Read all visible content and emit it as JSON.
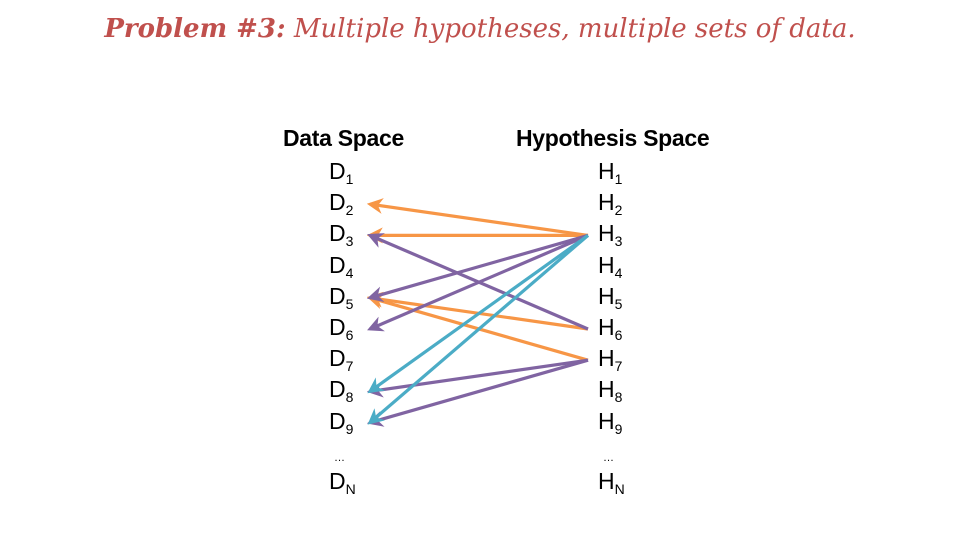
{
  "title": {
    "prefix": "Problem #3:",
    "text": " Multiple hypotheses, multiple sets of data."
  },
  "data_space": {
    "heading": "Data Space",
    "items": [
      {
        "base": "D",
        "sub": "1"
      },
      {
        "base": "D",
        "sub": "2"
      },
      {
        "base": "D",
        "sub": "3"
      },
      {
        "base": "D",
        "sub": "4"
      },
      {
        "base": "D",
        "sub": "5"
      },
      {
        "base": "D",
        "sub": "6"
      },
      {
        "base": "D",
        "sub": "7"
      },
      {
        "base": "D",
        "sub": "8"
      },
      {
        "base": "D",
        "sub": "9"
      }
    ],
    "ellipsis": "…",
    "last": {
      "base": "D",
      "sub": "N"
    }
  },
  "hypothesis_space": {
    "heading": "Hypothesis Space",
    "items": [
      {
        "base": "H",
        "sub": "1"
      },
      {
        "base": "H",
        "sub": "2"
      },
      {
        "base": "H",
        "sub": "3"
      },
      {
        "base": "H",
        "sub": "4"
      },
      {
        "base": "H",
        "sub": "5"
      },
      {
        "base": "H",
        "sub": "6"
      },
      {
        "base": "H",
        "sub": "7"
      },
      {
        "base": "H",
        "sub": "8"
      },
      {
        "base": "H",
        "sub": "9"
      }
    ],
    "ellipsis": "…",
    "last": {
      "base": "H",
      "sub": "N"
    }
  },
  "colors": {
    "orange": "#f79646",
    "purple": "#8064a2",
    "teal": "#4bacc6",
    "title": "#c0504d"
  },
  "arrows": [
    {
      "from": "H3",
      "to": "D2",
      "color": "orange"
    },
    {
      "from": "H3",
      "to": "D3",
      "color": "orange"
    },
    {
      "from": "H6",
      "to": "D5",
      "color": "orange"
    },
    {
      "from": "H7",
      "to": "D5",
      "color": "orange"
    },
    {
      "from": "H6",
      "to": "D3",
      "color": "purple"
    },
    {
      "from": "H3",
      "to": "D5",
      "color": "purple"
    },
    {
      "from": "H3",
      "to": "D6",
      "color": "purple"
    },
    {
      "from": "H7",
      "to": "D8",
      "color": "purple"
    },
    {
      "from": "H7",
      "to": "D9",
      "color": "purple"
    },
    {
      "from": "H3",
      "to": "D8",
      "color": "teal"
    },
    {
      "from": "H3",
      "to": "D9",
      "color": "teal"
    }
  ]
}
